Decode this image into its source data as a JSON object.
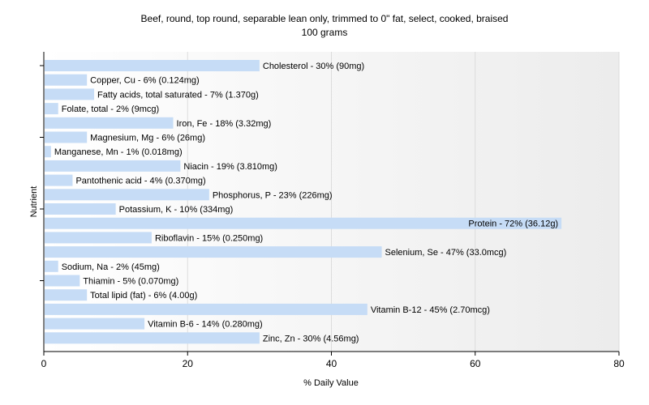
{
  "chart_data": {
    "type": "bar",
    "orientation": "horizontal",
    "title": "Beef, round, top round, separable lean only, trimmed to 0\" fat, select, cooked, braised",
    "subtitle": "100 grams",
    "xlabel": "% Daily Value",
    "ylabel": "Nutrient",
    "xlim": [
      0,
      80
    ],
    "xticks": [
      0,
      20,
      40,
      60,
      80
    ],
    "grid": true,
    "bar_color": "#c6dcf6",
    "categories": [
      "Cholesterol",
      "Copper, Cu",
      "Fatty acids, total saturated",
      "Folate, total",
      "Iron, Fe",
      "Magnesium, Mg",
      "Manganese, Mn",
      "Niacin",
      "Pantothenic acid",
      "Phosphorus, P",
      "Potassium, K",
      "Protein",
      "Riboflavin",
      "Selenium, Se",
      "Sodium, Na",
      "Thiamin",
      "Total lipid (fat)",
      "Vitamin B-12",
      "Vitamin B-6",
      "Zinc, Zn"
    ],
    "values": [
      30,
      6,
      7,
      2,
      18,
      6,
      1,
      19,
      4,
      23,
      10,
      72,
      15,
      47,
      2,
      5,
      6,
      45,
      14,
      30
    ],
    "labels": [
      "Cholesterol - 30% (90mg)",
      "Copper, Cu - 6% (0.124mg)",
      "Fatty acids, total saturated - 7% (1.370g)",
      "Folate, total - 2% (9mcg)",
      "Iron, Fe - 18% (3.32mg)",
      "Magnesium, Mg - 6% (26mg)",
      "Manganese, Mn - 1% (0.018mg)",
      "Niacin - 19% (3.810mg)",
      "Pantothenic acid - 4% (0.370mg)",
      "Phosphorus, P - 23% (226mg)",
      "Potassium, K - 10% (334mg)",
      "Protein - 72% (36.12g)",
      "Riboflavin - 15% (0.250mg)",
      "Selenium, Se - 47% (33.0mcg)",
      "Sodium, Na - 2% (45mg)",
      "Thiamin - 5% (0.070mg)",
      "Total lipid (fat) - 6% (4.00g)",
      "Vitamin B-12 - 45% (2.70mcg)",
      "Vitamin B-6 - 14% (0.280mg)",
      "Zinc, Zn - 30% (4.56mg)"
    ]
  }
}
